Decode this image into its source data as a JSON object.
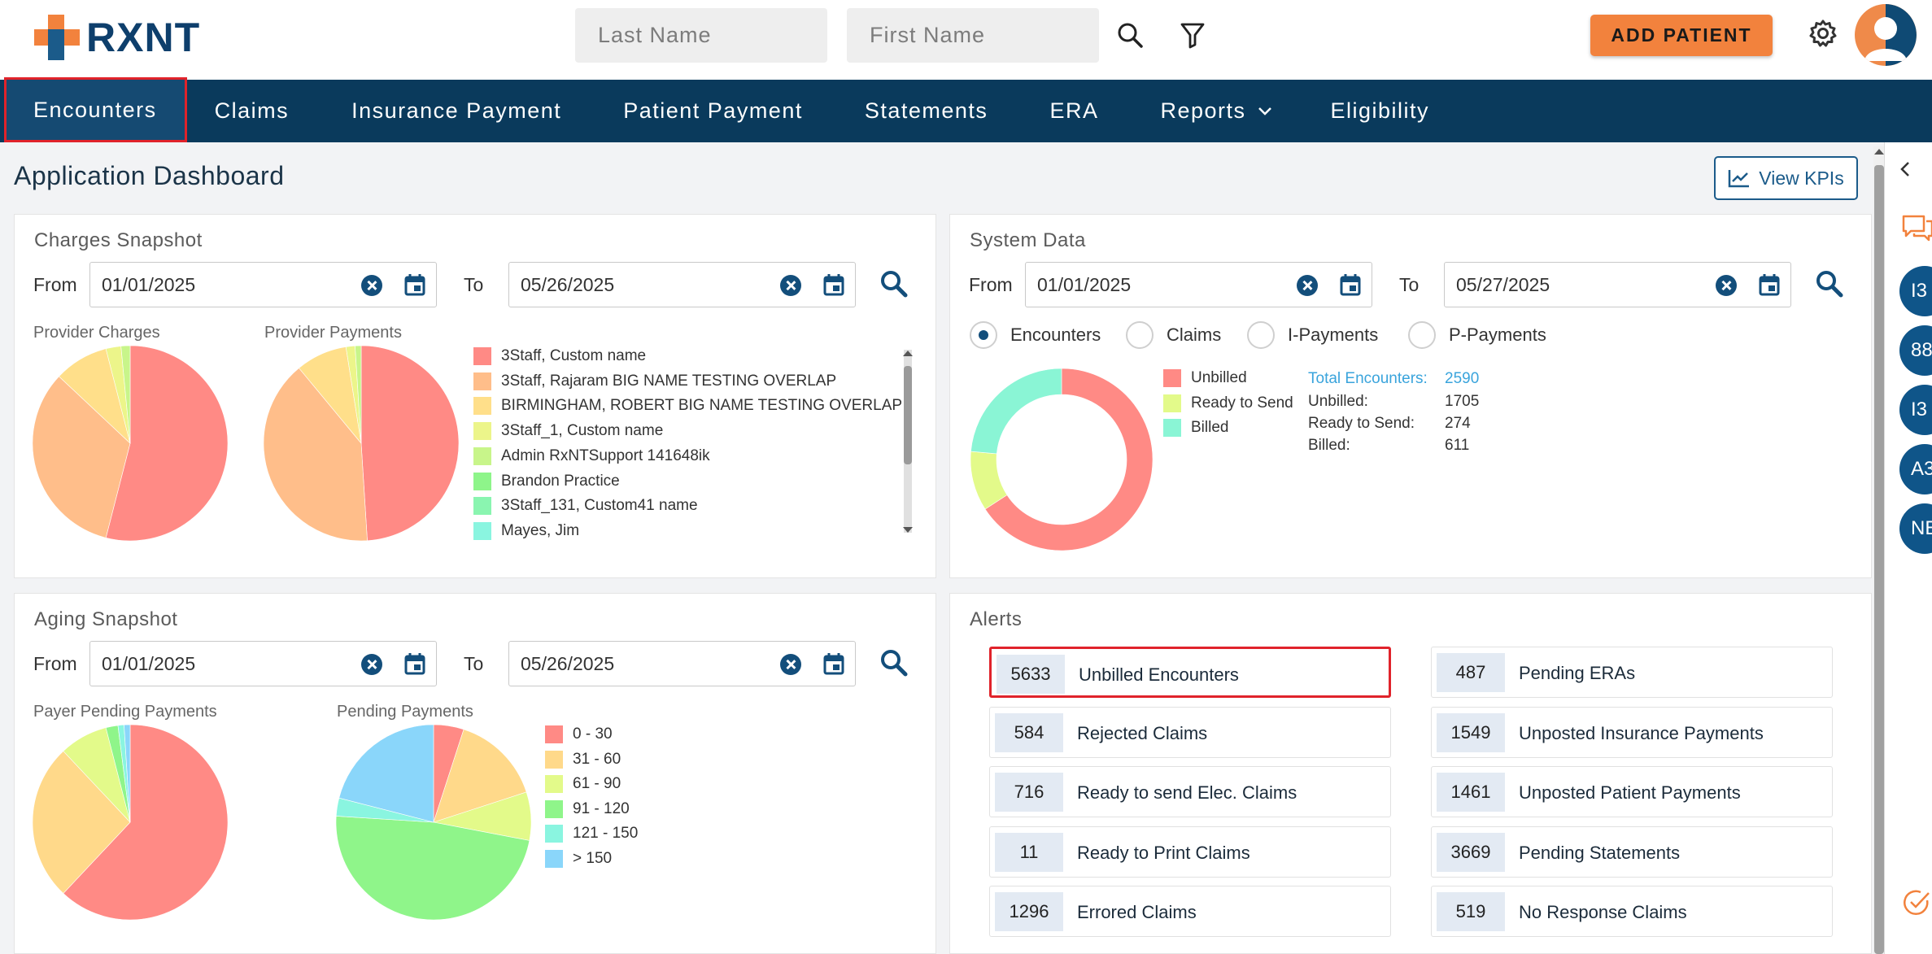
{
  "header": {
    "logo_text": "RXNT",
    "last_name_placeholder": "Last Name",
    "first_name_placeholder": "First Name",
    "add_patient_label": "ADD PATIENT"
  },
  "nav": {
    "items": [
      "Encounters",
      "Claims",
      "Insurance Payment",
      "Patient Payment",
      "Statements",
      "ERA",
      "Reports",
      "Eligibility"
    ],
    "active": "Encounters"
  },
  "main": {
    "title": "Application Dashboard",
    "view_kpis_label": "View KPIs"
  },
  "charges": {
    "title": "Charges Snapshot",
    "from_label": "From",
    "from_date": "01/01/2025",
    "to_label": "To",
    "to_date": "05/26/2025",
    "provider_charges_label": "Provider Charges",
    "provider_payments_label": "Provider Payments",
    "legend": [
      {
        "name": "3Staff, Custom name",
        "color": "#ff8a85"
      },
      {
        "name": "3Staff, Rajaram BIG NAME TESTING OVERLAP",
        "color": "#ffbe8a"
      },
      {
        "name": "BIRMINGHAM, ROBERT BIG NAME TESTING OVERLAP",
        "color": "#ffdf8a"
      },
      {
        "name": "3Staff_1, Custom name",
        "color": "#ecf58a"
      },
      {
        "name": "Admin RxNTSupport 141648ik",
        "color": "#c8f58a"
      },
      {
        "name": "Brandon Practice",
        "color": "#8ef58a"
      },
      {
        "name": "3Staff_131, Custom41 name",
        "color": "#8af5b0"
      },
      {
        "name": "Mayes, Jim",
        "color": "#8af5e0"
      }
    ]
  },
  "system": {
    "title": "System Data",
    "from_label": "From",
    "from_date": "01/01/2025",
    "to_label": "To",
    "to_date": "05/27/2025",
    "radios": [
      "Encounters",
      "Claims",
      "I-Payments",
      "P-Payments"
    ],
    "selected_radio": "Encounters",
    "legend": [
      {
        "name": "Unbilled",
        "color": "#ff8a85"
      },
      {
        "name": "Ready to Send",
        "color": "#e3fa8a"
      },
      {
        "name": "Billed",
        "color": "#8af5d5"
      }
    ],
    "stats": {
      "total_label": "Total Encounters:",
      "total_value": "2590",
      "unbilled_label": "Unbilled:",
      "unbilled_value": "1705",
      "ready_label": "Ready to Send:",
      "ready_value": "274",
      "billed_label": "Billed:",
      "billed_value": "611"
    }
  },
  "aging": {
    "title": "Aging Snapshot",
    "from_label": "From",
    "from_date": "01/01/2025",
    "to_label": "To",
    "to_date": "05/26/2025",
    "payer_label": "Payer Pending Payments",
    "pending_label": "Pending Payments",
    "legend": [
      {
        "name": "0 - 30",
        "color": "#ff8a85"
      },
      {
        "name": "31 - 60",
        "color": "#ffd98a"
      },
      {
        "name": "61 - 90",
        "color": "#e3fa8a"
      },
      {
        "name": "91 - 120",
        "color": "#8ff58a"
      },
      {
        "name": "121 - 150",
        "color": "#8af5e0"
      },
      {
        "name": "> 150",
        "color": "#8ad6fa"
      }
    ]
  },
  "alerts": {
    "title": "Alerts",
    "left": [
      {
        "count": "5633",
        "label": "Unbilled Encounters"
      },
      {
        "count": "584",
        "label": "Rejected Claims"
      },
      {
        "count": "716",
        "label": "Ready to send Elec. Claims"
      },
      {
        "count": "11",
        "label": "Ready to Print Claims"
      },
      {
        "count": "1296",
        "label": "Errored Claims"
      }
    ],
    "right": [
      {
        "count": "487",
        "label": "Pending ERAs"
      },
      {
        "count": "1549",
        "label": "Unposted Insurance Payments"
      },
      {
        "count": "1461",
        "label": "Unposted Patient Payments"
      },
      {
        "count": "3669",
        "label": "Pending Statements"
      },
      {
        "count": "519",
        "label": "No Response Claims"
      }
    ]
  },
  "rail": {
    "bubbles": [
      "I3",
      "88",
      "I3",
      "A3",
      "NE"
    ]
  },
  "chart_data": [
    {
      "type": "pie",
      "title": "Provider Charges",
      "categories": [
        "3Staff, Custom name",
        "3Staff, Rajaram BIG NAME TESTING OVERLAP",
        "BIRMINGHAM, ROBERT BIG NAME TESTING OVERLAP",
        "3Staff_1, Custom name",
        "Admin RxNTSupport 141648ik"
      ],
      "values": [
        54,
        33,
        9,
        2.5,
        1.5
      ]
    },
    {
      "type": "pie",
      "title": "Provider Payments",
      "categories": [
        "3Staff, Custom name",
        "3Staff, Rajaram BIG NAME TESTING OVERLAP",
        "BIRMINGHAM, ROBERT BIG NAME TESTING OVERLAP",
        "3Staff_1, Custom name",
        "Admin RxNTSupport 141648ik"
      ],
      "values": [
        49,
        40,
        8.5,
        1.5,
        1
      ]
    },
    {
      "type": "pie",
      "title": "Encounters",
      "categories": [
        "Unbilled",
        "Ready to Send",
        "Billed"
      ],
      "values": [
        1705,
        274,
        611
      ]
    },
    {
      "type": "pie",
      "title": "Payer Pending Payments",
      "categories": [
        "0 - 30",
        "31 - 60",
        "61 - 90",
        "91 - 120",
        "121 - 150",
        "> 150"
      ],
      "values": [
        62,
        26,
        8,
        2,
        1,
        1
      ]
    },
    {
      "type": "pie",
      "title": "Pending Payments",
      "categories": [
        "0 - 30",
        "31 - 60",
        "61 - 90",
        "91 - 120",
        "121 - 150",
        "> 150"
      ],
      "values": [
        5,
        15,
        8,
        48,
        3,
        21
      ]
    }
  ]
}
